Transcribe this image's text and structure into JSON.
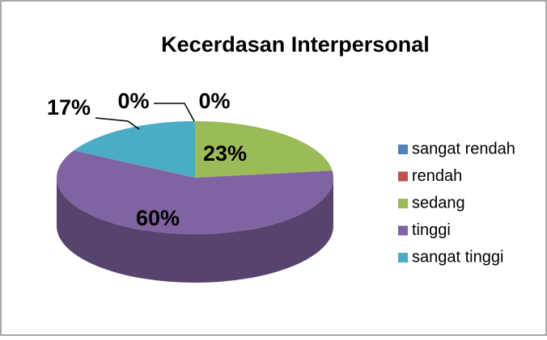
{
  "chart_data": {
    "type": "pie",
    "title": "Kecerdasan Interpersonal",
    "categories": [
      "sangat rendah",
      "rendah",
      "sedang",
      "tinggi",
      "sangat tinggi"
    ],
    "values": [
      0,
      0,
      23,
      60,
      17
    ],
    "value_labels": [
      "0%",
      "0%",
      "23%",
      "60%",
      "17%"
    ],
    "colors": [
      "#4f81bd",
      "#c0504d",
      "#9bbb59",
      "#8064a2",
      "#4bacc6"
    ],
    "legend": "right"
  }
}
